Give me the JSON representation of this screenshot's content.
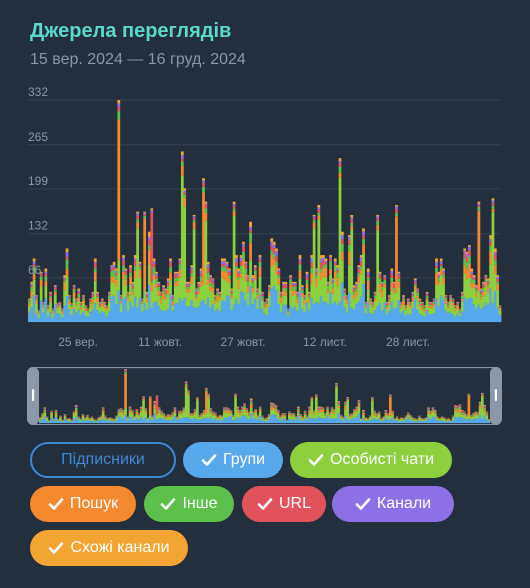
{
  "title": "Джерела переглядів",
  "subtitle": "15 вер. 2024 — 16 груд. 2024",
  "legend": [
    {
      "label": "Підписники",
      "color": "#3e88d4",
      "enabled": false
    },
    {
      "label": "Групи",
      "color": "#57a9ec",
      "enabled": true
    },
    {
      "label": "Особисті чати",
      "color": "#8cd03e",
      "enabled": true
    },
    {
      "label": "Пошук",
      "color": "#f4892f",
      "enabled": true
    },
    {
      "label": "Інше",
      "color": "#5cc04a",
      "enabled": true
    },
    {
      "label": "URL",
      "color": "#e1525a",
      "enabled": true
    },
    {
      "label": "Канали",
      "color": "#8d70e8",
      "enabled": true
    },
    {
      "label": "Схожі канали",
      "color": "#f3a533",
      "enabled": true
    }
  ],
  "chart_data": {
    "type": "area",
    "stacked": true,
    "title": "Джерела переглядів",
    "subtitle": "15 вер. 2024 — 16 груд. 2024",
    "x_tick_labels": [
      "25 вер.",
      "11 жовт.",
      "27 жовт.",
      "12 лист.",
      "28 лист."
    ],
    "y_tick_labels": [
      "0",
      "66",
      "132",
      "199",
      "265",
      "332"
    ],
    "ylim": [
      0,
      332
    ],
    "x_range": [
      "15 вер. 2024",
      "16 груд. 2024"
    ],
    "grid": true,
    "series_names": [
      "Групи",
      "Особисті чати",
      "Пошук",
      "Інше",
      "URL",
      "Канали",
      "Схожі канали"
    ],
    "totals": [
      35,
      60,
      95,
      40,
      18,
      75,
      30,
      80,
      25,
      45,
      20,
      55,
      28,
      30,
      20,
      70,
      110,
      40,
      28,
      55,
      35,
      50,
      30,
      40,
      25,
      20,
      35,
      45,
      95,
      45,
      30,
      35,
      30,
      25,
      45,
      85,
      90,
      80,
      332,
      40,
      100,
      80,
      45,
      85,
      60,
      100,
      165,
      90,
      35,
      165,
      45,
      135,
      170,
      95,
      75,
      60,
      45,
      55,
      50,
      65,
      95,
      40,
      75,
      75,
      95,
      255,
      200,
      60,
      60,
      85,
      160,
      50,
      60,
      80,
      215,
      180,
      90,
      70,
      65,
      40,
      50,
      45,
      95,
      95,
      90,
      80,
      50,
      180,
      100,
      80,
      100,
      120,
      90,
      70,
      150,
      70,
      85,
      50,
      100,
      45,
      30,
      35,
      55,
      125,
      120,
      110,
      80,
      45,
      60,
      60,
      20,
      70,
      60,
      60,
      45,
      100,
      55,
      40,
      75,
      45,
      100,
      160,
      80,
      175,
      100,
      100,
      95,
      60,
      100,
      65,
      95,
      85,
      245,
      135,
      50,
      40,
      130,
      160,
      55,
      60,
      85,
      100,
      140,
      30,
      80,
      35,
      30,
      45,
      160,
      75,
      60,
      70,
      30,
      40,
      80,
      60,
      175,
      75,
      30,
      40,
      25,
      35,
      30,
      45,
      65,
      50,
      35,
      30,
      25,
      45,
      30,
      30,
      35,
      95,
      75,
      95,
      80,
      40,
      30,
      40,
      35,
      25,
      30,
      20,
      45,
      110,
      105,
      115,
      80,
      70,
      55,
      180,
      50,
      60,
      70,
      65,
      130,
      185,
      110,
      70,
      25
    ]
  }
}
